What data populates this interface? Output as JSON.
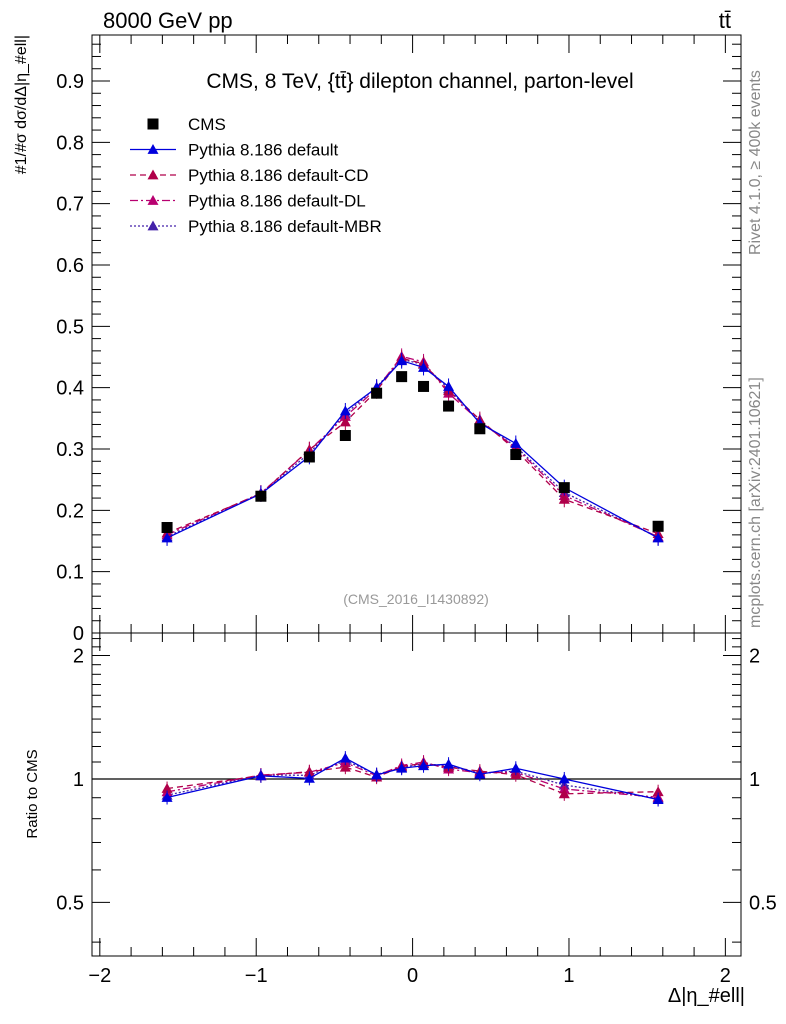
{
  "header": {
    "beam": "8000 GeV pp",
    "process": "tt̄"
  },
  "side": {
    "rivet": "Rivet 4.1.0, ≥ 400k events",
    "mcplots": "mcplots.cern.ch [arXiv:2401.10621]"
  },
  "chart_data": {
    "type": "line",
    "title": "CMS, 8 TeV, {tt̄} dilepton channel, parton-level",
    "watermark": "(CMS_2016_I1430892)",
    "ylabel": "#1/#σ dσ/dΔ|η_#ell|",
    "xlabel": "Δ|η_#ell|",
    "xlim": [
      -2.05,
      2.1
    ],
    "ylim": [
      0,
      0.975
    ],
    "xticks": [
      -2,
      -1,
      0,
      1,
      2
    ],
    "xtick_labels": [
      "−2",
      "−1",
      "0",
      "1",
      "2"
    ],
    "yticks": [
      0,
      0.1,
      0.2,
      0.3,
      0.4,
      0.5,
      0.6,
      0.7,
      0.8,
      0.9
    ],
    "ytick_labels": [
      "0",
      "0.1",
      "0.2",
      "0.3",
      "0.4",
      "0.5",
      "0.6",
      "0.7",
      "0.8",
      "0.9"
    ],
    "x": [
      -1.57,
      -0.97,
      -0.66,
      -0.43,
      -0.23,
      -0.07,
      0.07,
      0.23,
      0.43,
      0.66,
      0.97,
      1.57
    ],
    "series": [
      {
        "name": "CMS",
        "style": "marker",
        "color": "#000000",
        "values": [
          0.172,
          0.223,
          0.287,
          0.322,
          0.391,
          0.418,
          0.402,
          0.37,
          0.333,
          0.291,
          0.237,
          0.174
        ]
      },
      {
        "name": "Pythia 8.186 default",
        "style": "solid",
        "color": "#0000dd",
        "values": [
          0.155,
          0.227,
          0.288,
          0.362,
          0.4,
          0.444,
          0.433,
          0.402,
          0.342,
          0.309,
          0.237,
          0.155
        ]
      },
      {
        "name": "Pythia 8.186 default-CD",
        "style": "dashed",
        "color": "#b0004a",
        "values": [
          0.163,
          0.227,
          0.299,
          0.344,
          0.395,
          0.448,
          0.439,
          0.395,
          0.348,
          0.298,
          0.218,
          0.162
        ]
      },
      {
        "name": "Pythia 8.186 default-DL",
        "style": "dashdot",
        "color": "#b80070",
        "values": [
          0.16,
          0.228,
          0.298,
          0.353,
          0.398,
          0.451,
          0.442,
          0.391,
          0.345,
          0.302,
          0.224,
          0.157
        ]
      },
      {
        "name": "Pythia 8.186 default-MBR",
        "style": "dotted",
        "color": "#4422aa",
        "values": [
          0.157,
          0.228,
          0.293,
          0.357,
          0.401,
          0.446,
          0.438,
          0.398,
          0.344,
          0.304,
          0.229,
          0.156
        ]
      }
    ],
    "ratio": {
      "ylabel": "Ratio to CMS",
      "ylim": [
        0.37,
        2.27
      ],
      "yticks": [
        0.5,
        1,
        2
      ],
      "ytick_labels": [
        "0.5",
        "1",
        "2"
      ]
    }
  }
}
